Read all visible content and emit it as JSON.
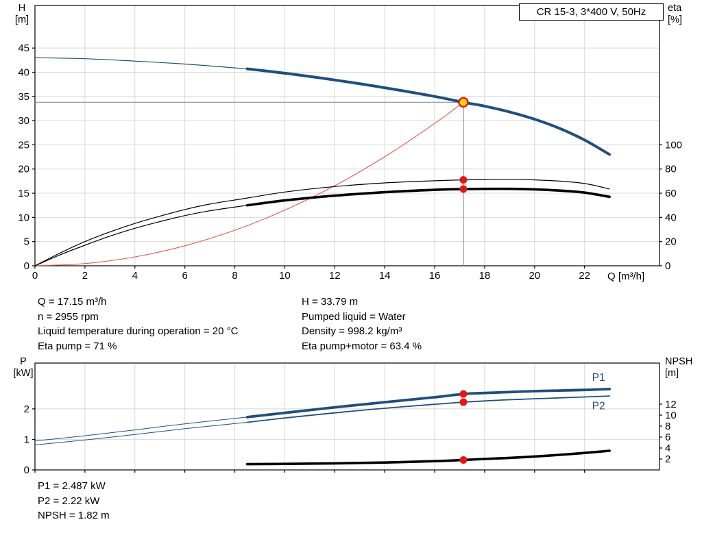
{
  "colors": {
    "curve_blue": "#1d4f80",
    "system_red": "#e0564e",
    "marker_red": "#e81414",
    "marker_yellow": "#ffd80a",
    "series_black": "#000000",
    "crosshair_gray": "#8f8f8f",
    "grid_gray": "#d8d8d8",
    "axis_black": "#000000"
  },
  "title_box": {
    "label": "CR 15-3, 3*400 V, 50Hz"
  },
  "info_top_left": [
    "Q = 17.15 m³/h",
    "n = 2955 rpm",
    "Liquid temperature during operation = 20 °C",
    "Eta pump = 71 %"
  ],
  "info_top_right": [
    "H = 33.79 m",
    "Pumped liquid = Water",
    "Density = 998.2 kg/m³",
    "Eta pump+motor = 63.4 %"
  ],
  "info_bottom": [
    "P1 = 2.487 kW",
    "P2 = 2.22 kW",
    "NPSH = 1.82 m"
  ],
  "chart_data": [
    {
      "id": "head",
      "type": "line",
      "title": "CR 15-3, 3*400 V, 50Hz",
      "xlabel": "Q [m³/h]",
      "ylabel_left": [
        "H",
        "[m]"
      ],
      "ylabel_right": [
        "eta",
        "[%]"
      ],
      "xlim": [
        0,
        25
      ],
      "ylim_left": [
        0,
        53.8
      ],
      "ylim_right": [
        0,
        215.2
      ],
      "x_ticks": [
        0,
        2,
        4,
        6,
        8,
        10,
        12,
        14,
        16,
        18,
        20,
        22
      ],
      "x_tick_labels": true,
      "y_ticks_left": [
        0,
        5,
        10,
        15,
        20,
        25,
        30,
        35,
        40,
        45
      ],
      "y_ticks_right": [
        0,
        20,
        40,
        60,
        80,
        100
      ],
      "grid": true,
      "legend": "none",
      "series": [
        {
          "name": "pump-head-curve",
          "label": "H(Q) pump curve CR 15-3",
          "axis": "left",
          "color_key": "curve_blue",
          "duty_from": 8.5,
          "w_thin": 1.2,
          "w_thick": 4,
          "x": [
            0,
            2,
            4,
            6,
            8,
            8.5,
            10,
            12,
            14,
            16,
            17.15,
            18,
            19,
            20,
            21,
            22,
            23
          ],
          "y": [
            43,
            42.8,
            42.3,
            41.7,
            40.9,
            40.7,
            39.8,
            38.4,
            36.8,
            35.0,
            33.79,
            33.0,
            31.8,
            30.3,
            28.4,
            26.0,
            23.0
          ]
        },
        {
          "name": "system-curve",
          "label": "system resistance curve",
          "axis": "left",
          "color_key": "system_red",
          "w_thin": 1.1,
          "x": [
            0,
            2,
            4,
            6,
            8,
            10,
            12,
            14,
            16,
            17.15
          ],
          "y": [
            0,
            0.46,
            1.84,
            4.14,
            7.35,
            11.49,
            16.55,
            22.52,
            29.42,
            33.79
          ]
        },
        {
          "name": "eta-pump-curve",
          "label": "eta pump [%]",
          "axis": "right",
          "color_key": "series_black",
          "w_thin": 1.2,
          "x": [
            0,
            1,
            2,
            3,
            4,
            5,
            6,
            7,
            8.5,
            10,
            12,
            14,
            16,
            17.15,
            18,
            19,
            20,
            21,
            22,
            23
          ],
          "y": [
            0,
            10.5,
            20,
            28,
            35,
            41,
            46.5,
            51,
            56,
            61,
            65.5,
            68.5,
            70.3,
            71,
            71.3,
            71.5,
            71,
            70,
            68,
            63.5
          ]
        },
        {
          "name": "eta-pump-motor-curve",
          "label": "eta pump+motor [%]",
          "axis": "right",
          "color_key": "series_black",
          "duty_from": 8.5,
          "w_thin": 1.2,
          "w_thick": 3.6,
          "x": [
            0,
            1,
            2,
            3,
            4,
            5,
            6,
            7,
            8.5,
            10,
            12,
            14,
            16,
            17.15,
            18,
            19,
            20,
            21,
            22,
            23
          ],
          "y": [
            0,
            9,
            17,
            24.5,
            31,
            36.5,
            41.5,
            45.5,
            50,
            54,
            58,
            60.8,
            62.8,
            63.4,
            63.6,
            63.6,
            63.2,
            62.2,
            60.5,
            57
          ]
        }
      ],
      "crosshair": {
        "q": 17.15,
        "v": 33.79
      },
      "duty_point": {
        "q": 17.15,
        "v": 33.79
      },
      "markers": [
        {
          "axis": "right",
          "q": 17.15,
          "v": 71
        },
        {
          "axis": "right",
          "q": 17.15,
          "v": 63.4
        }
      ]
    },
    {
      "id": "power",
      "type": "line",
      "title": "",
      "xlabel": "",
      "ylabel_left": [
        "P",
        "[kW]"
      ],
      "ylabel_right": [
        "NPSH",
        "[m]"
      ],
      "xlim": [
        0,
        25
      ],
      "ylim_left": [
        0,
        3.5
      ],
      "ylim_right": [
        0,
        19.5
      ],
      "x_ticks": [
        0,
        2,
        4,
        6,
        8,
        10,
        12,
        14,
        16,
        18,
        20,
        22
      ],
      "x_tick_labels": false,
      "y_ticks_left": [
        0,
        1,
        2
      ],
      "y_ticks_right": [
        2,
        4,
        6,
        8,
        10,
        12
      ],
      "grid": true,
      "legend": "inline-labels",
      "series": [
        {
          "name": "p1-curve",
          "label": "P1",
          "axis": "left",
          "color_key": "curve_blue",
          "duty_from": 8.5,
          "w_thin": 1,
          "w_thick": 3.8,
          "x": [
            0,
            2,
            4,
            6,
            8.5,
            10,
            12,
            14,
            16,
            17.15,
            18,
            19,
            20,
            21,
            22,
            23
          ],
          "y": [
            0.95,
            1.12,
            1.31,
            1.51,
            1.73,
            1.87,
            2.05,
            2.22,
            2.38,
            2.487,
            2.52,
            2.55,
            2.58,
            2.6,
            2.62,
            2.65
          ]
        },
        {
          "name": "p2-curve",
          "label": "P2",
          "axis": "left",
          "color_key": "curve_blue",
          "duty_from": 8.5,
          "w_thin": 1,
          "w_thick": 1.8,
          "x": [
            0,
            2,
            4,
            6,
            8.5,
            10,
            12,
            14,
            16,
            17.15,
            18,
            19,
            20,
            21,
            22,
            23
          ],
          "y": [
            0.82,
            0.98,
            1.16,
            1.35,
            1.56,
            1.7,
            1.87,
            2.02,
            2.15,
            2.22,
            2.26,
            2.3,
            2.33,
            2.36,
            2.39,
            2.42
          ]
        },
        {
          "name": "npsh-curve",
          "label": "NPSH",
          "axis": "right",
          "color_key": "series_black",
          "w_thin": 3.6,
          "x": [
            8.5,
            10,
            12,
            14,
            16,
            17.15,
            18,
            19,
            20,
            21,
            22,
            23
          ],
          "y": [
            1.05,
            1.1,
            1.2,
            1.35,
            1.6,
            1.82,
            2.0,
            2.2,
            2.45,
            2.75,
            3.1,
            3.5
          ]
        }
      ],
      "markers": [
        {
          "axis": "left",
          "q": 17.15,
          "v": 2.487
        },
        {
          "axis": "left",
          "q": 17.15,
          "v": 2.22
        },
        {
          "axis": "right",
          "q": 17.15,
          "v": 1.82
        }
      ],
      "annotations": [
        {
          "text": "P1",
          "q": 22.3,
          "v": 2.92,
          "axis": "left",
          "color_key": "curve_blue"
        },
        {
          "text": "P2",
          "q": 22.3,
          "v": 1.98,
          "axis": "left",
          "color_key": "curve_blue"
        }
      ]
    }
  ]
}
